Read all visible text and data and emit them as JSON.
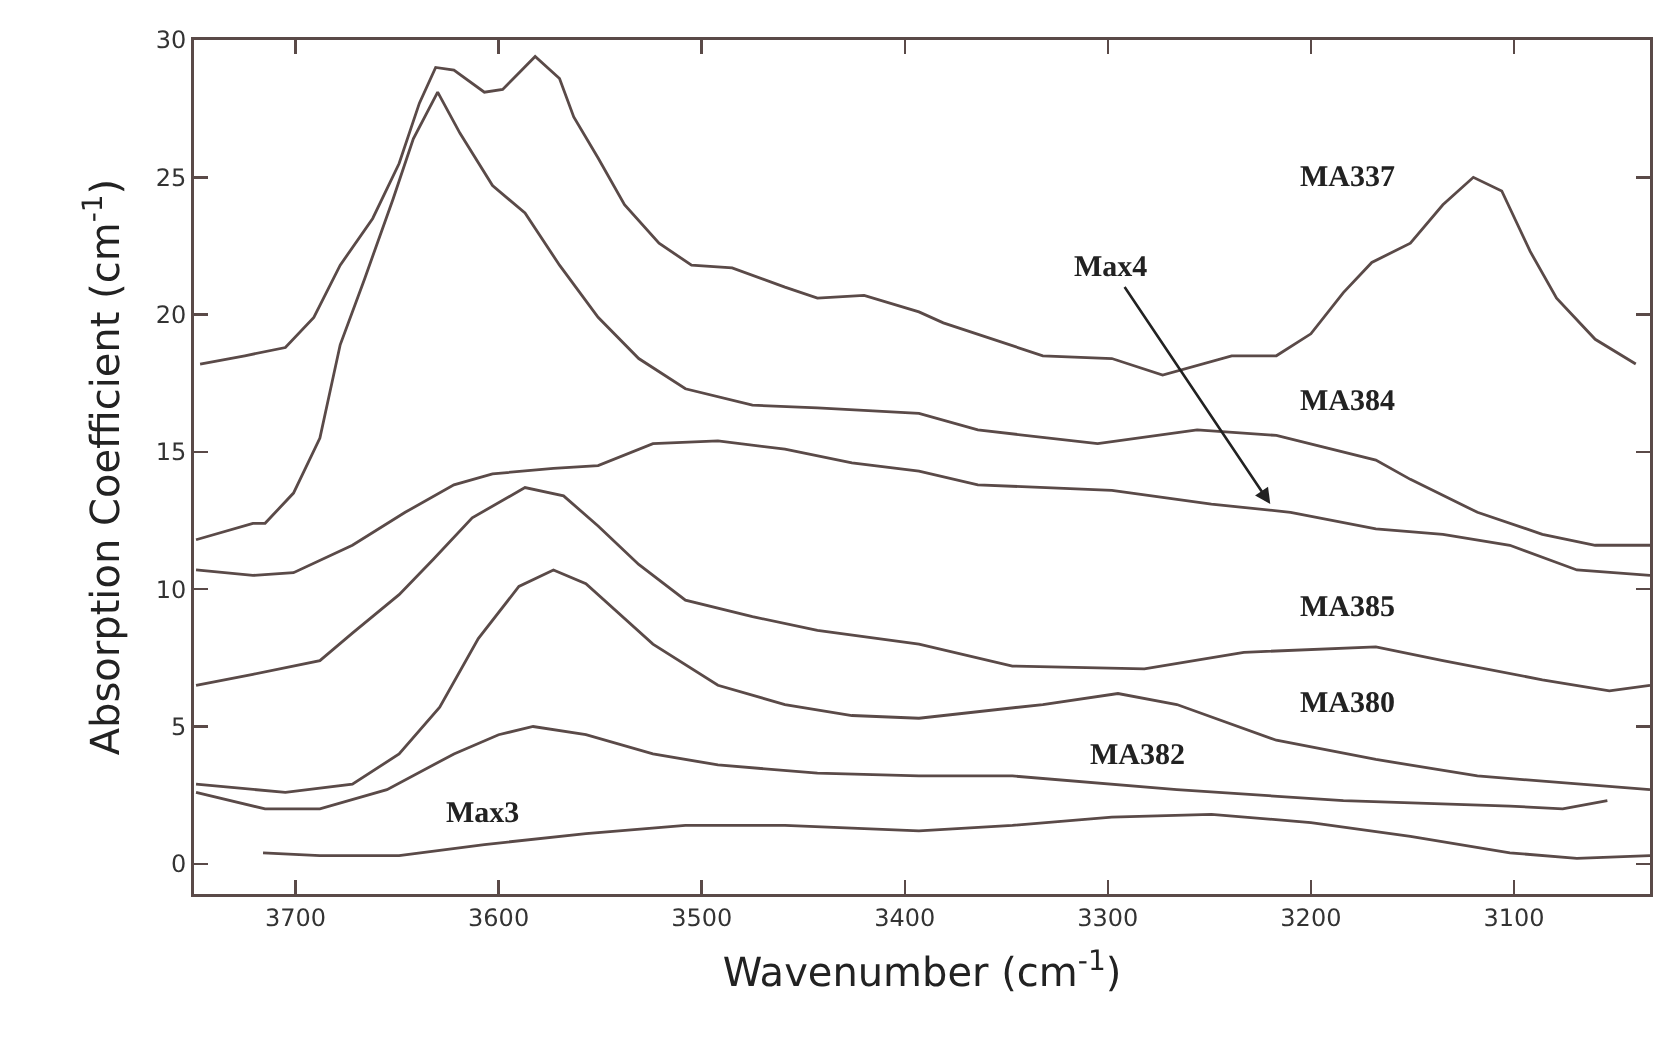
{
  "chart_data": {
    "type": "line",
    "xlabel": "Wavenumber (cm$^{-1}$)",
    "ylabel": "Absorption Coefficient (cm$^{-1}$)",
    "xlim": [
      3750,
      3033
    ],
    "xticks": [
      3700,
      3600,
      3500,
      3400,
      3300,
      3200,
      3100
    ],
    "ylim": [
      -1.1,
      30
    ],
    "yticks": [
      0,
      5,
      10,
      15,
      20,
      25,
      30
    ],
    "grid": false,
    "legend": false,
    "marker": "none",
    "line_style": "solid",
    "series": [
      {
        "name": "MA337",
        "color": "#5a4a48",
        "x": [
          3747,
          3725,
          3705,
          3691,
          3678,
          3662,
          3649,
          3639,
          3631,
          3622,
          3607,
          3598,
          3590,
          3582,
          3570,
          3563,
          3551,
          3538,
          3521,
          3505,
          3485,
          3459,
          3443,
          3420,
          3393,
          3381,
          3332,
          3298,
          3273,
          3239,
          3217,
          3200,
          3184,
          3170,
          3151,
          3135,
          3120,
          3106,
          3092,
          3079,
          3060,
          3040
        ],
        "values": [
          18.2,
          18.5,
          18.8,
          19.9,
          21.8,
          23.5,
          25.5,
          27.7,
          29,
          28.9,
          28.1,
          28.2,
          28.8,
          29.4,
          28.6,
          27.2,
          25.7,
          24,
          22.6,
          21.8,
          21.7,
          21,
          20.6,
          20.7,
          20.1,
          19.7,
          18.5,
          18.4,
          17.8,
          18.5,
          18.5,
          19.3,
          20.8,
          21.9,
          22.6,
          24,
          25,
          24.5,
          22.3,
          20.6,
          19.1,
          18.2
        ]
      },
      {
        "name": "MA384",
        "color": "#5a4a48",
        "x": [
          3749,
          3721,
          3715,
          3701,
          3688,
          3678,
          3666,
          3652,
          3642,
          3630,
          3619,
          3603,
          3587,
          3570,
          3551,
          3531,
          3508,
          3475,
          3443,
          3393,
          3364,
          3305,
          3256,
          3217,
          3168,
          3151,
          3118,
          3086,
          3060,
          3033
        ],
        "values": [
          11.8,
          12.4,
          12.4,
          13.5,
          15.5,
          18.9,
          21.3,
          24.2,
          26.4,
          28.1,
          26.6,
          24.7,
          23.7,
          21.8,
          19.9,
          18.4,
          17.3,
          16.7,
          16.6,
          16.4,
          15.8,
          15.3,
          15.8,
          15.6,
          14.7,
          14,
          12.8,
          12,
          11.6,
          11.6
        ]
      },
      {
        "name": "Max4",
        "color": "#5a4a48",
        "x": [
          3749,
          3721,
          3701,
          3672,
          3646,
          3622,
          3603,
          3573,
          3551,
          3524,
          3492,
          3459,
          3426,
          3393,
          3364,
          3298,
          3249,
          3210,
          3168,
          3135,
          3102,
          3069,
          3033
        ],
        "values": [
          10.7,
          10.5,
          10.6,
          11.6,
          12.8,
          13.8,
          14.2,
          14.4,
          14.5,
          15.3,
          15.4,
          15.1,
          14.6,
          14.3,
          13.8,
          13.6,
          13.1,
          12.8,
          12.2,
          12,
          11.6,
          10.7,
          10.5
        ]
      },
      {
        "name": "MA385",
        "color": "#5a4a48",
        "x": [
          3749,
          3721,
          3688,
          3672,
          3649,
          3632,
          3613,
          3587,
          3568,
          3551,
          3531,
          3508,
          3475,
          3443,
          3393,
          3347,
          3282,
          3233,
          3168,
          3135,
          3086,
          3053,
          3033
        ],
        "values": [
          6.5,
          6.9,
          7.4,
          8.4,
          9.8,
          11.1,
          12.6,
          13.7,
          13.4,
          12.3,
          10.9,
          9.6,
          9,
          8.5,
          8,
          7.2,
          7.1,
          7.7,
          7.9,
          7.4,
          6.7,
          6.3,
          6.5
        ]
      },
      {
        "name": "MA380",
        "color": "#5a4a48",
        "x": [
          3749,
          3705,
          3672,
          3649,
          3629,
          3610,
          3590,
          3573,
          3557,
          3524,
          3492,
          3459,
          3426,
          3393,
          3332,
          3295,
          3266,
          3217,
          3168,
          3118,
          3033
        ],
        "values": [
          2.9,
          2.6,
          2.9,
          4,
          5.7,
          8.2,
          10.1,
          10.7,
          10.2,
          8,
          6.5,
          5.8,
          5.4,
          5.3,
          5.8,
          6.2,
          5.8,
          4.5,
          3.8,
          3.2,
          2.7
        ]
      },
      {
        "name": "MA382",
        "color": "#5a4a48",
        "x": [
          3749,
          3715,
          3688,
          3655,
          3622,
          3600,
          3583,
          3557,
          3524,
          3492,
          3443,
          3393,
          3347,
          3266,
          3184,
          3102,
          3076,
          3054
        ],
        "values": [
          2.6,
          2,
          2,
          2.7,
          4,
          4.7,
          5,
          4.7,
          4,
          3.6,
          3.3,
          3.2,
          3.2,
          2.7,
          2.3,
          2.1,
          2,
          2.3
        ]
      },
      {
        "name": "Max3",
        "color": "#5a4a48",
        "x": [
          3716,
          3688,
          3649,
          3607,
          3557,
          3508,
          3459,
          3393,
          3347,
          3298,
          3249,
          3200,
          3151,
          3102,
          3069,
          3033
        ],
        "values": [
          0.4,
          0.3,
          0.3,
          0.7,
          1.1,
          1.4,
          1.4,
          1.2,
          1.4,
          1.7,
          1.8,
          1.5,
          1,
          0.4,
          0.2,
          0.3
        ]
      }
    ]
  }
}
